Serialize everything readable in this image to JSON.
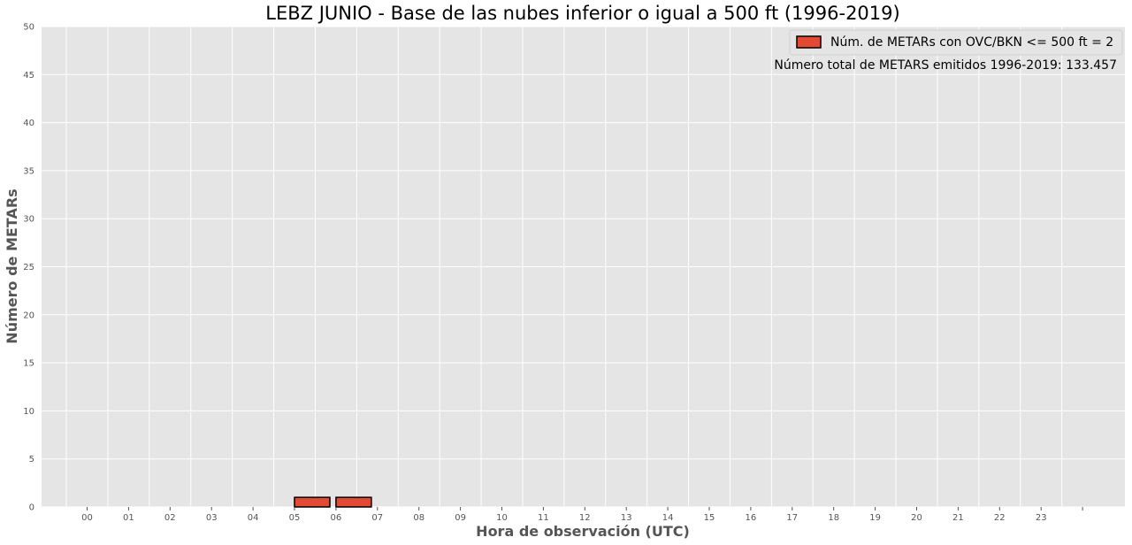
{
  "chart_data": {
    "type": "bar",
    "title": "LEBZ JUNIO - Base de las nubes inferior o igual a 500 ft (1996-2019)",
    "xlabel": "Hora de observación (UTC)",
    "ylabel": "Número de METARs",
    "categories": [
      "00",
      "01",
      "02",
      "03",
      "04",
      "05",
      "06",
      "07",
      "08",
      "09",
      "10",
      "11",
      "12",
      "13",
      "14",
      "15",
      "16",
      "17",
      "18",
      "19",
      "20",
      "21",
      "22",
      "23"
    ],
    "series": [
      {
        "name": "Núm. de METARs con OVC/BKN <= 500 ft = 2",
        "values": [
          0,
          0,
          0,
          0,
          0,
          1,
          1,
          0,
          0,
          0,
          0,
          0,
          0,
          0,
          0,
          0,
          0,
          0,
          0,
          0,
          0,
          0,
          0,
          0
        ]
      }
    ],
    "ylim": [
      0,
      50
    ],
    "yticks": [
      0,
      5,
      10,
      15,
      20,
      25,
      30,
      35,
      40,
      45,
      50
    ],
    "grid": true,
    "legend_position": "top-right",
    "annotation": "Número total de METARS emitidos 1996-2019:  133.457",
    "colors": {
      "bar_fill": "#e24a33",
      "bar_edge": "#000000",
      "plot_background": "#e5e5e5",
      "grid": "#ffffff"
    }
  }
}
